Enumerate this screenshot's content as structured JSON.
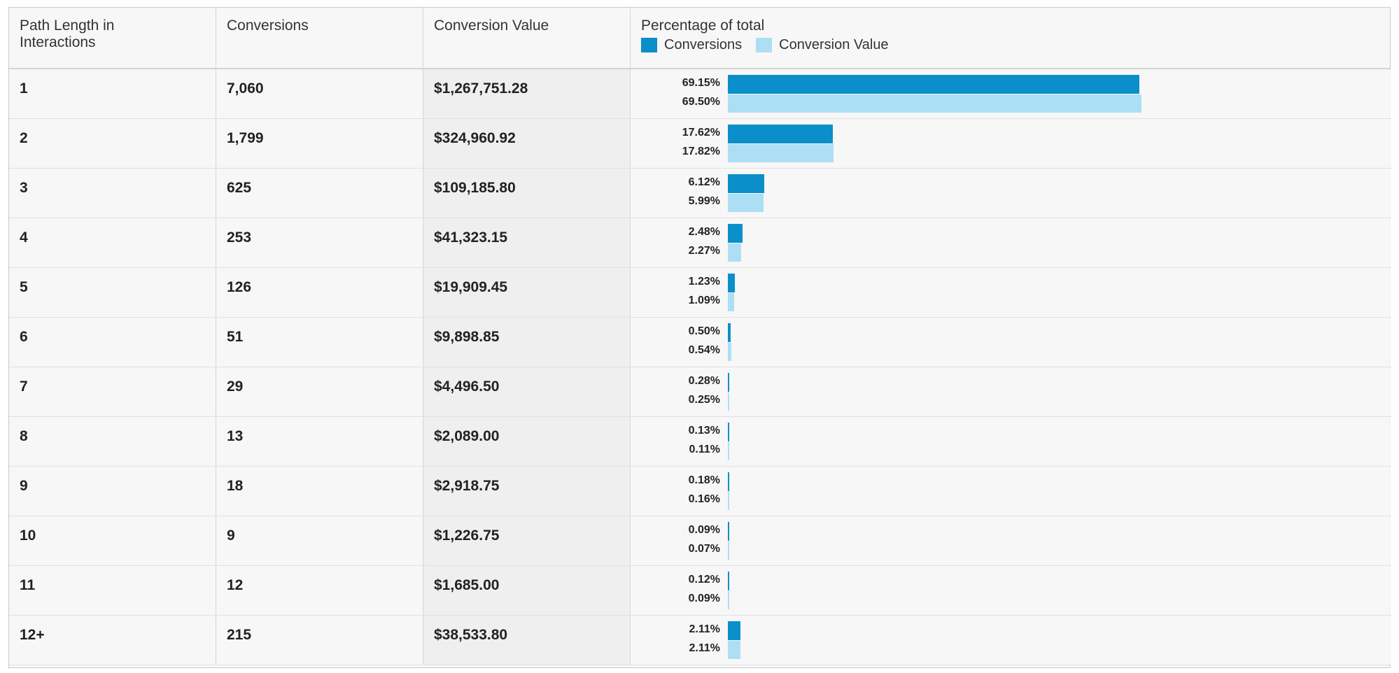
{
  "colors": {
    "conversions": "#0b8fca",
    "conversion_value": "#addff4"
  },
  "header": {
    "col1": "Path Length in Interactions",
    "col2": "Conversions",
    "col3": "Conversion Value",
    "col4": "Percentage of total",
    "legend_conversions": "Conversions",
    "legend_value": "Conversion Value"
  },
  "chart_data": {
    "type": "bar",
    "categories": [
      "1",
      "2",
      "3",
      "4",
      "5",
      "6",
      "7",
      "8",
      "9",
      "10",
      "11",
      "12+"
    ],
    "series": [
      {
        "name": "Conversions",
        "values": [
          69.15,
          17.62,
          6.12,
          2.48,
          1.23,
          0.5,
          0.28,
          0.13,
          0.18,
          0.09,
          0.12,
          2.11
        ]
      },
      {
        "name": "Conversion Value",
        "values": [
          69.5,
          17.82,
          5.99,
          2.27,
          1.09,
          0.54,
          0.25,
          0.11,
          0.16,
          0.07,
          0.09,
          2.11
        ]
      }
    ],
    "unit": "%"
  },
  "rows": [
    {
      "path": "1",
      "conversions": "7,060",
      "value": "$1,267,751.28",
      "pct_conv": "69.15%",
      "pct_val": "69.50%"
    },
    {
      "path": "2",
      "conversions": "1,799",
      "value": "$324,960.92",
      "pct_conv": "17.62%",
      "pct_val": "17.82%"
    },
    {
      "path": "3",
      "conversions": "625",
      "value": "$109,185.80",
      "pct_conv": "6.12%",
      "pct_val": "5.99%"
    },
    {
      "path": "4",
      "conversions": "253",
      "value": "$41,323.15",
      "pct_conv": "2.48%",
      "pct_val": "2.27%"
    },
    {
      "path": "5",
      "conversions": "126",
      "value": "$19,909.45",
      "pct_conv": "1.23%",
      "pct_val": "1.09%"
    },
    {
      "path": "6",
      "conversions": "51",
      "value": "$9,898.85",
      "pct_conv": "0.50%",
      "pct_val": "0.54%"
    },
    {
      "path": "7",
      "conversions": "29",
      "value": "$4,496.50",
      "pct_conv": "0.28%",
      "pct_val": "0.25%"
    },
    {
      "path": "8",
      "conversions": "13",
      "value": "$2,089.00",
      "pct_conv": "0.13%",
      "pct_val": "0.11%"
    },
    {
      "path": "9",
      "conversions": "18",
      "value": "$2,918.75",
      "pct_conv": "0.18%",
      "pct_val": "0.16%"
    },
    {
      "path": "10",
      "conversions": "9",
      "value": "$1,226.75",
      "pct_conv": "0.09%",
      "pct_val": "0.07%"
    },
    {
      "path": "11",
      "conversions": "12",
      "value": "$1,685.00",
      "pct_conv": "0.12%",
      "pct_val": "0.09%"
    },
    {
      "path": "12+",
      "conversions": "215",
      "value": "$38,533.80",
      "pct_conv": "2.11%",
      "pct_val": "2.11%"
    }
  ]
}
